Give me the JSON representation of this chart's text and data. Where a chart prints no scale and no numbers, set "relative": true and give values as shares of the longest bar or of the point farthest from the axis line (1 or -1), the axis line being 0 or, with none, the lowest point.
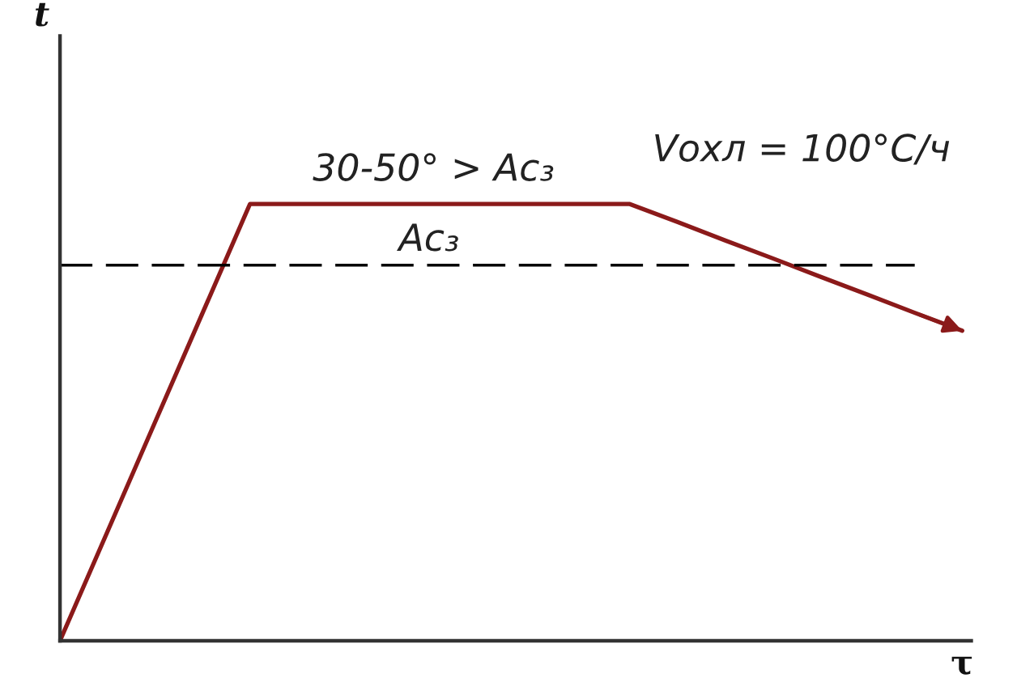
{
  "chart_data": {
    "type": "line",
    "relative": true,
    "xlabel": "τ",
    "categories": [
      null,
      null,
      null,
      null,
      null,
      null,
      null,
      null,
      null,
      null,
      null,
      null,
      null,
      null,
      null,
      null,
      null,
      null,
      null,
      null
    ],
    "series": [
      {
        "color": "#8b1a1a",
        "line_style": "solid",
        "values": [
          0,
          0.25,
          0.5,
          0.75,
          1,
          1,
          1,
          1,
          1,
          1,
          1,
          1,
          1,
          0.959,
          0.917,
          0.876,
          0.834,
          0.793,
          0.751,
          0.71
        ]
      },
      {
        "name": "Ac₃",
        "color": "#000000",
        "line_style": "dashed",
        "values": [
          0.86,
          0.86,
          0.86,
          0.86,
          0.86,
          0.86,
          0.86,
          0.86,
          0.86,
          0.86,
          0.86,
          0.86,
          0.86,
          0.86,
          0.86,
          0.86,
          0.86,
          0.86,
          0.86,
          null
        ]
      }
    ],
    "annotations": [
      "30-50° > Ac₃",
      "Vохл = 100°C/ч",
      "t"
    ]
  }
}
